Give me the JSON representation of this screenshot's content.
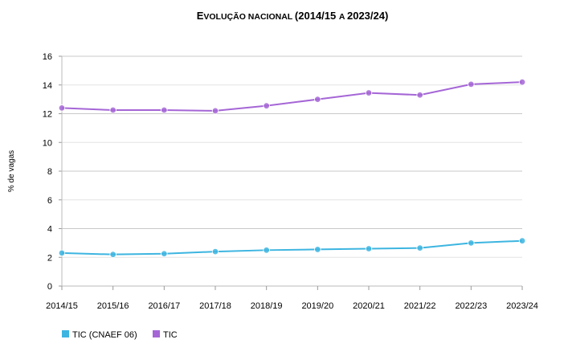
{
  "chart_data": {
    "type": "line",
    "title_main": "Evolução nacional",
    "title_rest": "(2014/15 a 2023/24)",
    "ylabel": "% de vagas",
    "xlabel": "",
    "categories": [
      "2014/15",
      "2015/16",
      "2016/17",
      "2017/18",
      "2018/19",
      "2019/20",
      "2020/21",
      "2021/22",
      "2022/23",
      "2023/24"
    ],
    "ylim": [
      0,
      16
    ],
    "yticks": [
      0,
      2,
      4,
      6,
      8,
      10,
      12,
      14,
      16
    ],
    "grid": "horizontal",
    "legend_position": "bottom-left",
    "series": [
      {
        "name": "TIC (CNAEF 06)",
        "color": "#3db5e0",
        "values": [
          2.3,
          2.2,
          2.25,
          2.4,
          2.5,
          2.55,
          2.6,
          2.65,
          3.0,
          3.15
        ]
      },
      {
        "name": "TIC",
        "color": "#a566d6",
        "values": [
          12.4,
          12.25,
          12.25,
          12.2,
          12.55,
          13.0,
          13.45,
          13.3,
          14.05,
          14.2
        ]
      }
    ]
  }
}
